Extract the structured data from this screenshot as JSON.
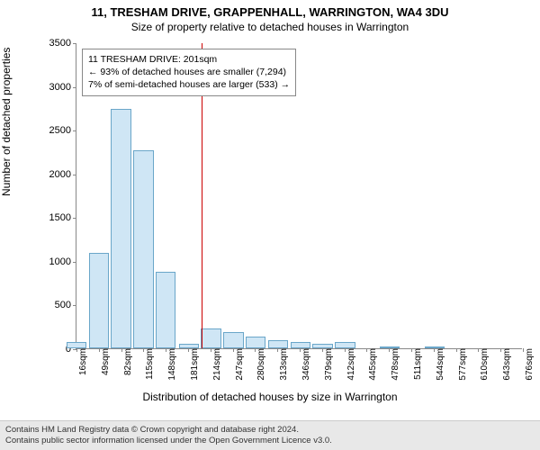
{
  "header": {
    "title": "11, TRESHAM DRIVE, GRAPPENHALL, WARRINGTON, WA4 3DU",
    "subtitle": "Size of property relative to detached houses in Warrington"
  },
  "chart": {
    "type": "histogram",
    "ylabel": "Number of detached properties",
    "xlabel": "Distribution of detached houses by size in Warrington",
    "ylim": [
      0,
      3500
    ],
    "ytick_step": 500,
    "xtick_step": 33,
    "xtick_start": 16,
    "xtick_count": 21,
    "xtick_unit": "sqm",
    "bar_color": "#cfe6f5",
    "bar_border": "#6aa6c9",
    "marker_color": "#cc0000",
    "background_color": "#ffffff",
    "grid_color": "#e0e0e0",
    "axis_color": "#888888",
    "label_fontsize": 12,
    "tick_fontsize": 11,
    "bar_width": 0.9,
    "bars": [
      {
        "x": 16,
        "value": 70
      },
      {
        "x": 49,
        "value": 1090
      },
      {
        "x": 82,
        "value": 2740
      },
      {
        "x": 115,
        "value": 2270
      },
      {
        "x": 148,
        "value": 880
      },
      {
        "x": 182,
        "value": 50
      },
      {
        "x": 215,
        "value": 230
      },
      {
        "x": 248,
        "value": 185
      },
      {
        "x": 281,
        "value": 130
      },
      {
        "x": 314,
        "value": 95
      },
      {
        "x": 347,
        "value": 75
      },
      {
        "x": 380,
        "value": 55
      },
      {
        "x": 413,
        "value": 70
      },
      {
        "x": 446,
        "value": 0
      },
      {
        "x": 479,
        "value": 10
      },
      {
        "x": 513,
        "value": 0
      },
      {
        "x": 546,
        "value": 5
      },
      {
        "x": 579,
        "value": 0
      },
      {
        "x": 612,
        "value": 0
      },
      {
        "x": 645,
        "value": 0
      },
      {
        "x": 678,
        "value": 0
      }
    ],
    "marker_x": 201,
    "annotation": {
      "line1": "11 TRESHAM DRIVE: 201sqm",
      "line2": "← 93% of detached houses are smaller (7,294)",
      "line3": "7% of semi-detached houses are larger (533) →"
    }
  },
  "footer": {
    "line1": "Contains HM Land Registry data © Crown copyright and database right 2024.",
    "line2": "Contains public sector information licensed under the Open Government Licence v3.0."
  }
}
